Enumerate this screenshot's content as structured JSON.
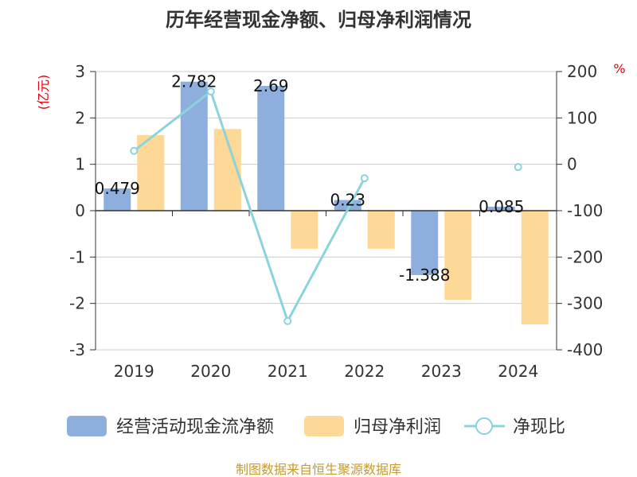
{
  "chart_data": {
    "type": "bar",
    "title": "历年经营现金净额、归母净利润情况",
    "categories": [
      "2019",
      "2020",
      "2021",
      "2022",
      "2023",
      "2024"
    ],
    "left_axis": {
      "unit": "(亿元)",
      "ylim": [
        -3,
        3
      ],
      "ticks": [
        3,
        2,
        1,
        0,
        -1,
        -2,
        -3
      ]
    },
    "right_axis": {
      "unit": "%",
      "ylim": [
        -400,
        200
      ],
      "ticks": [
        200,
        100,
        0,
        -100,
        -200,
        -300,
        -400
      ]
    },
    "series": [
      {
        "name": "经营活动现金流净额",
        "type": "bar",
        "axis": "left",
        "color": "#8eafdd",
        "values": [
          0.479,
          2.782,
          2.69,
          0.23,
          -1.388,
          0.085
        ],
        "labels": [
          "0.479",
          "2.782",
          "2.69",
          "0.23",
          "-1.388",
          "0.085"
        ]
      },
      {
        "name": "归母净利润",
        "type": "bar",
        "axis": "left",
        "color": "#fdd896",
        "values": [
          1.63,
          1.76,
          -0.82,
          -0.82,
          -1.92,
          -2.45
        ]
      },
      {
        "name": "净现比",
        "type": "line",
        "axis": "right",
        "color": "#8ad4dc",
        "values": [
          29,
          157,
          -338,
          -30,
          null,
          -6
        ]
      }
    ],
    "grid": true,
    "legend_position": "bottom"
  },
  "footer": {
    "source": "制图数据来自恒生聚源数据库"
  }
}
